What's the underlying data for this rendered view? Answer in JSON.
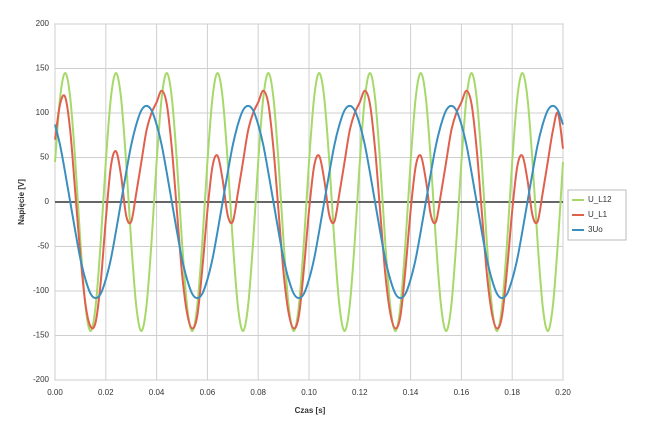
{
  "chart_data": {
    "type": "line",
    "xlabel": "Czas [s]",
    "ylabel": "Napięcie [V]",
    "x": [
      0,
      0.002,
      0.004,
      0.006,
      0.008,
      0.01,
      0.012,
      0.014,
      0.016,
      0.018,
      0.02,
      0.022,
      0.024,
      0.026,
      0.028,
      0.03,
      0.032,
      0.034,
      0.036,
      0.038,
      0.04,
      0.042,
      0.044,
      0.046,
      0.048,
      0.05,
      0.052,
      0.054,
      0.056,
      0.058,
      0.06,
      0.062,
      0.064,
      0.066,
      0.068,
      0.07,
      0.072,
      0.074,
      0.076,
      0.078,
      0.08,
      0.082,
      0.084,
      0.086,
      0.088,
      0.09,
      0.092,
      0.094,
      0.096,
      0.098,
      0.1,
      0.102,
      0.104,
      0.106,
      0.108,
      0.11,
      0.112,
      0.114,
      0.116,
      0.118,
      0.12,
      0.122,
      0.124,
      0.126,
      0.128,
      0.13,
      0.132,
      0.134,
      0.136,
      0.138,
      0.14,
      0.142,
      0.144,
      0.146,
      0.148,
      0.15,
      0.152,
      0.154,
      0.156,
      0.158,
      0.16,
      0.162,
      0.164,
      0.166,
      0.168,
      0.17,
      0.172,
      0.174,
      0.176,
      0.178,
      0.18,
      0.182,
      0.184,
      0.186,
      0.188,
      0.19,
      0.192,
      0.194,
      0.196,
      0.198,
      0.2
    ],
    "series": [
      {
        "name": "U_L12",
        "color": "#a6d96a",
        "values": [
          45,
          117,
          145,
          117,
          45,
          -45,
          -117,
          -145,
          -117,
          -45,
          45,
          117,
          145,
          117,
          45,
          -45,
          -117,
          -145,
          -117,
          -45,
          45,
          117,
          145,
          117,
          45,
          -45,
          -117,
          -145,
          -117,
          -45,
          45,
          117,
          145,
          117,
          45,
          -45,
          -117,
          -145,
          -117,
          -45,
          45,
          117,
          145,
          117,
          45,
          -45,
          -117,
          -145,
          -117,
          -45,
          45,
          117,
          145,
          117,
          45,
          -45,
          -117,
          -145,
          -117,
          -45,
          45,
          117,
          145,
          117,
          45,
          -45,
          -117,
          -145,
          -117,
          -45,
          45,
          117,
          145,
          117,
          45,
          -45,
          -117,
          -145,
          -117,
          -45,
          45,
          117,
          145,
          117,
          45,
          -45,
          -117,
          -145,
          -117,
          -45,
          45,
          117,
          145,
          117,
          45,
          -45,
          -117,
          -145,
          -117,
          -45,
          45
        ]
      },
      {
        "name": "U_L1",
        "color": "#e0604e",
        "values": [
          70,
          110,
          118,
          80,
          10,
          -60,
          -115,
          -140,
          -135,
          -90,
          -20,
          40,
          57,
          30,
          -15,
          -22,
          10,
          45,
          80,
          100,
          112,
          125,
          110,
          60,
          -10,
          -80,
          -125,
          -142,
          -128,
          -75,
          -10,
          40,
          52,
          25,
          -15,
          -22,
          10,
          45,
          80,
          100,
          112,
          125,
          110,
          60,
          -10,
          -80,
          -125,
          -142,
          -128,
          -75,
          -10,
          40,
          52,
          25,
          -15,
          -22,
          10,
          45,
          80,
          100,
          112,
          125,
          110,
          60,
          -10,
          -80,
          -125,
          -142,
          -128,
          -75,
          -10,
          40,
          52,
          25,
          -15,
          -22,
          10,
          45,
          80,
          100,
          112,
          125,
          110,
          60,
          -10,
          -80,
          -125,
          -142,
          -128,
          -75,
          -10,
          40,
          52,
          25,
          -15,
          -22,
          10,
          45,
          80,
          100,
          60
        ]
      },
      {
        "name": "3Uo",
        "color": "#3a8fbf",
        "values": [
          87,
          64,
          33,
          0,
          -33,
          -64,
          -87,
          -103,
          -108,
          -103,
          -87,
          -64,
          -33,
          0,
          33,
          64,
          87,
          103,
          108,
          103,
          87,
          64,
          33,
          0,
          -33,
          -64,
          -87,
          -103,
          -108,
          -103,
          -87,
          -64,
          -33,
          0,
          33,
          64,
          87,
          103,
          108,
          103,
          87,
          64,
          33,
          0,
          -33,
          -64,
          -87,
          -103,
          -108,
          -103,
          -87,
          -64,
          -33,
          0,
          33,
          64,
          87,
          103,
          108,
          103,
          87,
          64,
          33,
          0,
          -33,
          -64,
          -87,
          -103,
          -108,
          -103,
          -87,
          -64,
          -33,
          0,
          33,
          64,
          87,
          103,
          108,
          103,
          87,
          64,
          33,
          0,
          -33,
          -64,
          -87,
          -103,
          -108,
          -103,
          -87,
          -64,
          -33,
          0,
          33,
          64,
          87,
          103,
          108,
          103,
          87
        ]
      }
    ],
    "xlim": [
      0,
      0.2
    ],
    "xticks": [
      {
        "value": 0,
        "label": "0.00"
      },
      {
        "value": 0.02,
        "label": "0.02"
      },
      {
        "value": 0.04,
        "label": "0.04"
      },
      {
        "value": 0.06,
        "label": "0.06"
      },
      {
        "value": 0.08,
        "label": "0.08"
      },
      {
        "value": 0.1,
        "label": "0.10"
      },
      {
        "value": 0.12,
        "label": "0.12"
      },
      {
        "value": 0.14,
        "label": "0.14"
      },
      {
        "value": 0.16,
        "label": "0.16"
      },
      {
        "value": 0.18,
        "label": "0.18"
      },
      {
        "value": 0.2,
        "label": "0.20"
      }
    ],
    "ylim": [
      -200,
      200
    ],
    "yticks": [
      -200,
      -150,
      -100,
      -50,
      0,
      50,
      100,
      150,
      200
    ],
    "grid": true,
    "legend": "right"
  }
}
